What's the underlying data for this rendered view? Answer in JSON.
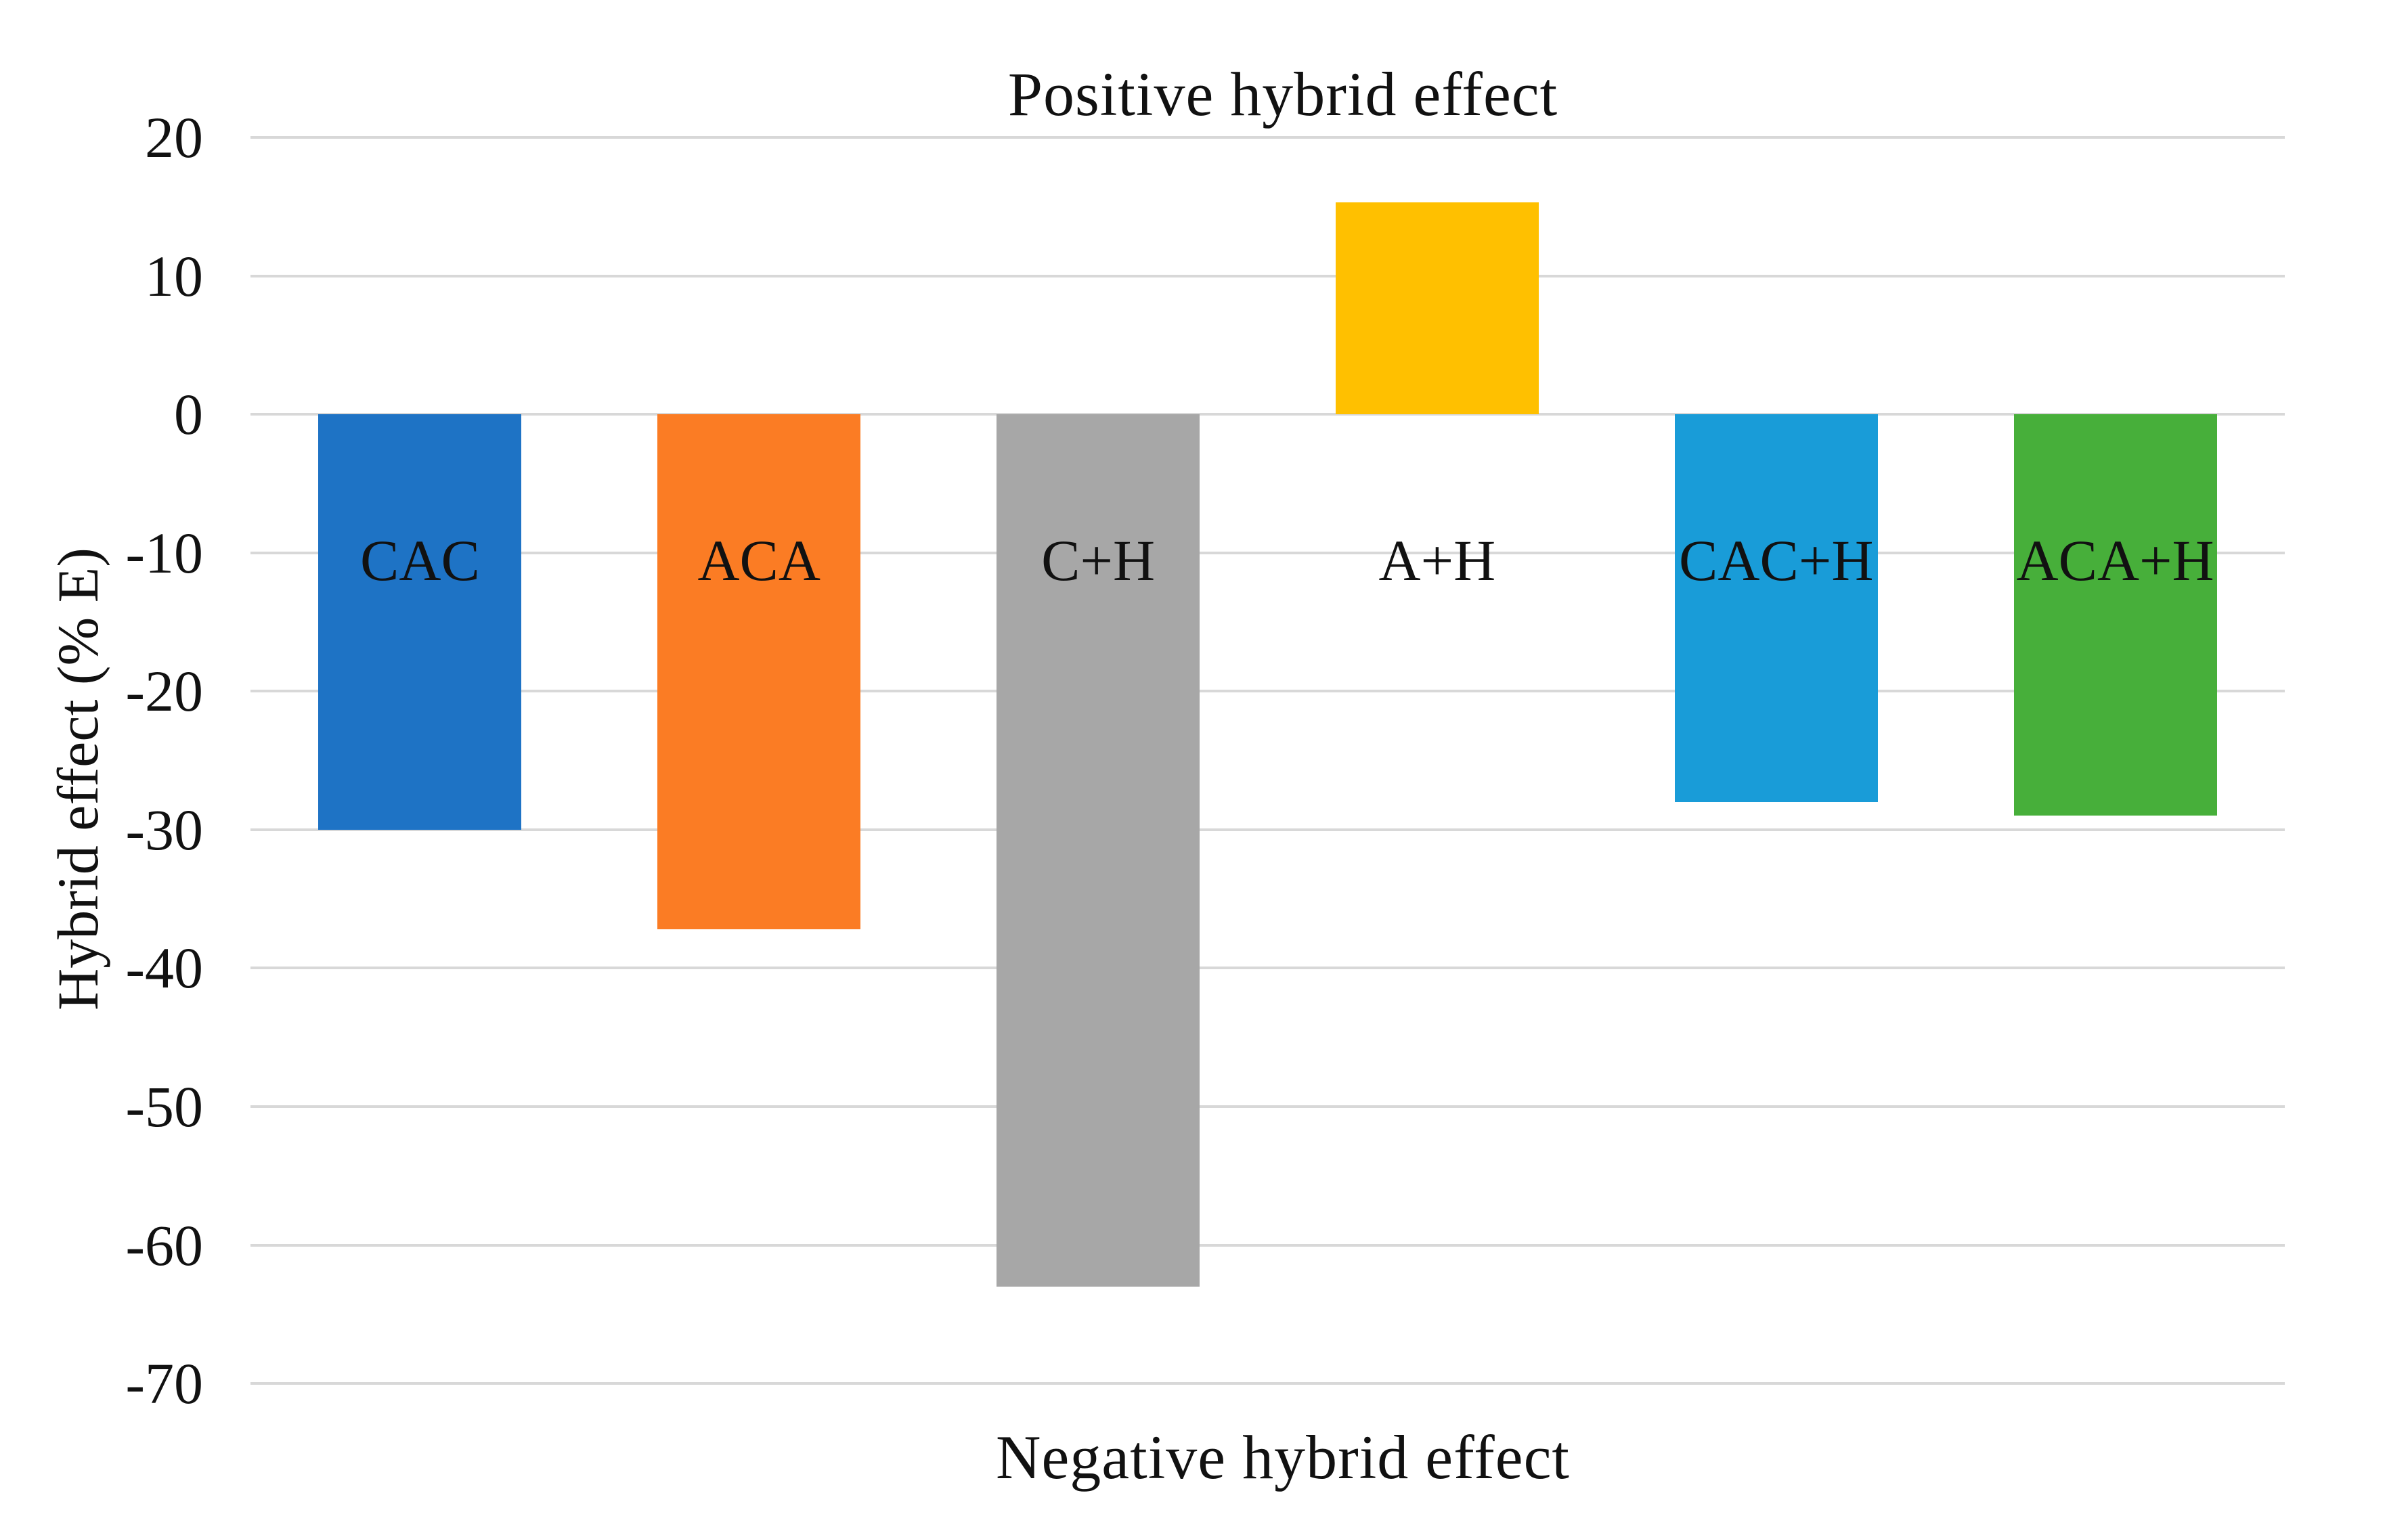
{
  "chart_data": {
    "type": "bar",
    "title": "Positive hybrid effect",
    "bottom_label": "Negative hybrid effect",
    "ylabel": "Hybrid effect (% E)",
    "categories": [
      "CAC",
      "ACA",
      "C+H",
      "A+H",
      "CAC+H",
      "ACA+H"
    ],
    "values": [
      -30,
      -37.2,
      -63,
      15.3,
      -28,
      -29
    ],
    "bar_colors": [
      "#1E73C5",
      "#FB7C24",
      "#A7A7A7",
      "#FFC000",
      "#199CD8",
      "#47AF3A"
    ],
    "yticks": [
      20,
      10,
      0,
      -10,
      -20,
      -30,
      -40,
      -50,
      -60,
      -70
    ],
    "ylim": [
      -70,
      20
    ],
    "grid": true,
    "gridline_color": "#D8D8D8",
    "text_color": "#111111",
    "legend": "none"
  }
}
